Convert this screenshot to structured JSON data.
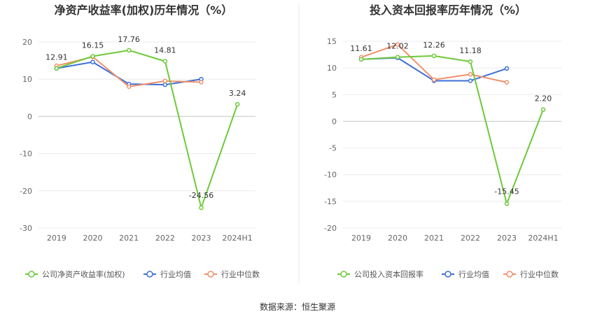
{
  "source": {
    "prefix": "数据来源：",
    "name": "恒生聚源"
  },
  "colors": {
    "company": "#6ec93a",
    "avg": "#3d6fd6",
    "median": "#f0906a"
  },
  "chart_data": [
    {
      "type": "line",
      "title": "净资产收益率(加权)历年情况（%）",
      "categories": [
        "2019",
        "2020",
        "2021",
        "2022",
        "2023",
        "2024H1"
      ],
      "ylim": [
        -30,
        20
      ],
      "yticks": [
        20,
        10,
        0,
        -10,
        -20,
        -30
      ],
      "series": [
        {
          "name": "公司净资产收益率(加权)",
          "key": "company",
          "values": [
            12.91,
            16.15,
            17.76,
            14.81,
            -24.56,
            3.24
          ]
        },
        {
          "name": "行业均值",
          "key": "avg",
          "values": [
            12.9,
            14.6,
            8.7,
            8.5,
            10.0,
            null
          ]
        },
        {
          "name": "行业中位数",
          "key": "median",
          "values": [
            13.6,
            16.0,
            8.0,
            9.5,
            9.2,
            null
          ]
        }
      ],
      "labels": [
        "12.91",
        "16.15",
        "17.76",
        "14.81",
        "-24.56",
        "3.24"
      ],
      "legend": "bottom"
    },
    {
      "type": "line",
      "title": "投入资本回报率历年情况（%）",
      "categories": [
        "2019",
        "2020",
        "2021",
        "2022",
        "2023",
        "2024H1"
      ],
      "ylim": [
        -20,
        15
      ],
      "yticks": [
        15,
        10,
        5,
        0,
        -5,
        -10,
        -15,
        -20
      ],
      "series": [
        {
          "name": "公司投入资本回报率",
          "key": "company",
          "values": [
            11.61,
            12.02,
            12.26,
            11.18,
            -15.45,
            2.2
          ]
        },
        {
          "name": "行业均值",
          "key": "avg",
          "values": [
            11.6,
            11.9,
            7.6,
            7.6,
            9.9,
            null
          ]
        },
        {
          "name": "行业中位数",
          "key": "median",
          "values": [
            12.0,
            14.4,
            7.8,
            8.8,
            7.3,
            null
          ]
        }
      ],
      "labels": [
        "11.61",
        "12.02",
        "12.26",
        "11.18",
        "-15.45",
        "2.20"
      ],
      "legend": "bottom"
    }
  ]
}
